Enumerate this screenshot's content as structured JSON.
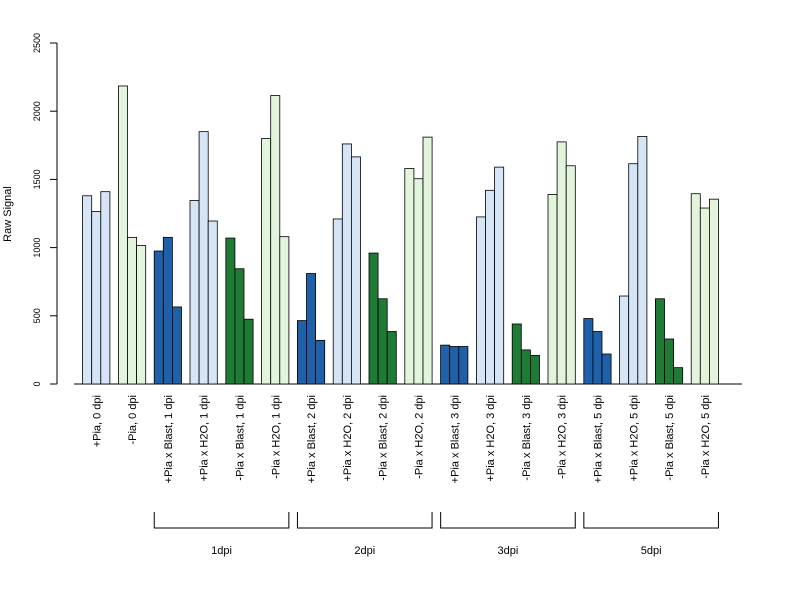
{
  "chart_data": {
    "type": "bar",
    "ylabel": "Raw Signal",
    "xlabel": "",
    "title": "",
    "ylim": [
      0,
      2500
    ],
    "yticks": [
      0,
      500,
      1000,
      1500,
      2000,
      2500
    ],
    "grid": false,
    "categories": [
      "+Pia, 0 dpi",
      "-Pia, 0 dpi",
      "+Pia x Blast, 1 dpi",
      "+Pia x H2O, 1 dpi",
      "-Pia x Blast, 1 dpi",
      "-Pia x H2O, 1 dpi",
      "+Pia x Blast, 2 dpi",
      "+Pia x H2O, 2 dpi",
      "-Pia x Blast, 2 dpi",
      "-Pia x H2O, 2 dpi",
      "+Pia x Blast, 3 dpi",
      "+Pia x H2O, 3 dpi",
      "-Pia x Blast, 3 dpi",
      "-Pia x H2O, 3 dpi",
      "+Pia x Blast, 5 dpi",
      "+Pia x H2O, 5 dpi",
      "-Pia x Blast, 5 dpi",
      "-Pia x H2O, 5 dpi"
    ],
    "replicates": [
      [
        1380,
        1265,
        1410
      ],
      [
        2185,
        1075,
        1015
      ],
      [
        975,
        1075,
        565
      ],
      [
        1345,
        1850,
        1195
      ],
      [
        1070,
        845,
        475
      ],
      [
        1800,
        2115,
        1080
      ],
      [
        465,
        810,
        320
      ],
      [
        1210,
        1760,
        1665
      ],
      [
        960,
        625,
        385
      ],
      [
        1580,
        1505,
        1810
      ],
      [
        285,
        275,
        275
      ],
      [
        1225,
        1420,
        1590
      ],
      [
        440,
        250,
        210
      ],
      [
        1390,
        1775,
        1600
      ],
      [
        480,
        385,
        220
      ],
      [
        645,
        1615,
        1815
      ],
      [
        625,
        330,
        120
      ],
      [
        1395,
        1290,
        1355
      ]
    ],
    "bar_colors": [
      "#d5e5f5",
      "#e2f5dc",
      "#2060a8",
      "#d5e5f5",
      "#1f7a35",
      "#e2f5dc",
      "#2060a8",
      "#d5e5f5",
      "#1f7a35",
      "#e2f5dc",
      "#2060a8",
      "#d5e5f5",
      "#1f7a35",
      "#e2f5dc",
      "#2060a8",
      "#d5e5f5",
      "#1f7a35",
      "#e2f5dc"
    ],
    "groups": [
      {
        "label": "1dpi",
        "first": 2,
        "last": 5
      },
      {
        "label": "2dpi",
        "first": 6,
        "last": 9
      },
      {
        "label": "3dpi",
        "first": 10,
        "last": 13
      },
      {
        "label": "5dpi",
        "first": 14,
        "last": 17
      }
    ]
  }
}
